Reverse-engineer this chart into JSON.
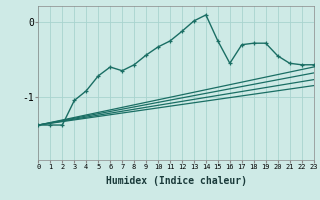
{
  "xlabel": "Humidex (Indice chaleur)",
  "bg_color": "#ceeae6",
  "grid_color": "#a8d4cf",
  "line_color": "#1a6e64",
  "xmin": 0,
  "xmax": 23,
  "ymin": -1.85,
  "ymax": 0.22,
  "yticks": [
    0,
    -1
  ],
  "main_x": [
    0,
    1,
    2,
    3,
    4,
    5,
    6,
    7,
    8,
    9,
    10,
    11,
    12,
    13,
    14,
    15,
    16,
    17,
    18,
    19,
    20,
    21,
    22,
    23
  ],
  "main_y": [
    -1.38,
    -1.38,
    -1.38,
    -1.05,
    -0.92,
    -0.72,
    -0.6,
    -0.65,
    -0.57,
    -0.44,
    -0.33,
    -0.25,
    -0.12,
    0.02,
    0.1,
    -0.25,
    -0.55,
    -0.3,
    -0.28,
    -0.28,
    -0.45,
    -0.55,
    -0.57,
    -0.57
  ],
  "trend1_x": [
    0,
    23
  ],
  "trend1_y": [
    -1.38,
    -0.6
  ],
  "trend2_x": [
    0,
    23
  ],
  "trend2_y": [
    -1.38,
    -0.68
  ],
  "trend3_x": [
    0,
    23
  ],
  "trend3_y": [
    -1.38,
    -0.77
  ],
  "trend4_x": [
    0,
    23
  ],
  "trend4_y": [
    -1.38,
    -0.85
  ]
}
